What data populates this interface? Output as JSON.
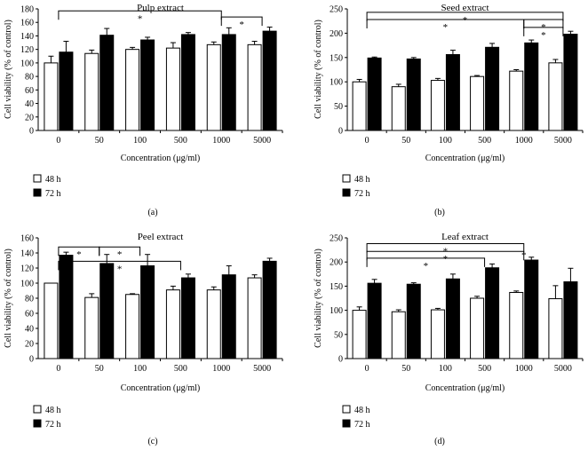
{
  "chart_data": [
    {
      "type": "bar",
      "title": "Pulp extract",
      "categories": [
        "0",
        "50",
        "100",
        "500",
        "1000",
        "5000"
      ],
      "series": [
        {
          "name": "48 h",
          "values": [
            100,
            114,
            120,
            122,
            127,
            127
          ],
          "errors": [
            10,
            5,
            3,
            8,
            4,
            5
          ]
        },
        {
          "name": "72 h",
          "values": [
            116,
            141,
            134,
            142,
            142,
            147
          ],
          "errors": [
            16,
            10,
            4,
            3,
            10,
            6
          ]
        }
      ],
      "ylabel": "Cell viability (% of control)",
      "xlabel": "Concentration (μg/ml)",
      "ylim": [
        0,
        180
      ],
      "yticks": [
        0,
        20,
        40,
        60,
        80,
        100,
        120,
        140,
        160,
        180
      ],
      "panel_label": "(a)",
      "annotations": [
        {
          "text": "*",
          "from": 0,
          "to": 4,
          "level": 177
        },
        {
          "text": "*",
          "from": 4,
          "to": 5,
          "level": 168
        }
      ]
    },
    {
      "type": "bar",
      "title": "Seed extract",
      "categories": [
        "0",
        "50",
        "100",
        "500",
        "1000",
        "5000"
      ],
      "series": [
        {
          "name": "48 h",
          "values": [
            100,
            90,
            103,
            111,
            122,
            139
          ],
          "errors": [
            5,
            5,
            4,
            2,
            3,
            7
          ]
        },
        {
          "name": "72 h",
          "values": [
            149,
            147,
            156,
            171,
            180,
            198
          ],
          "errors": [
            2,
            3,
            9,
            8,
            6,
            6
          ]
        }
      ],
      "ylabel": "Cell viability (% of control)",
      "xlabel": "Concentration (μg/ml)",
      "ylim": [
        0,
        250
      ],
      "yticks": [
        0,
        50,
        100,
        150,
        200,
        250
      ],
      "panel_label": "(b)",
      "annotations": [
        {
          "text": "*",
          "from": 0,
          "to": 5,
          "level": 243
        },
        {
          "text": "*",
          "from": 0,
          "to": 4,
          "level": 228
        },
        {
          "text": "*",
          "from": 4,
          "to": 5,
          "level": 228
        },
        {
          "text": "*",
          "from": 4,
          "to": 5,
          "level": 212
        }
      ]
    },
    {
      "type": "bar",
      "title": "Peel extract",
      "categories": [
        "0",
        "50",
        "100",
        "500",
        "1000",
        "5000"
      ],
      "series": [
        {
          "name": "48 h",
          "values": [
            100,
            81,
            85,
            91,
            91,
            107
          ],
          "errors": [
            0,
            5,
            1,
            5,
            4,
            4
          ]
        },
        {
          "name": "72 h",
          "values": [
            137,
            126,
            123,
            107,
            111,
            129
          ],
          "errors": [
            4,
            12,
            15,
            5,
            12,
            4
          ]
        }
      ],
      "ylabel": "Cell viability (% of control)",
      "xlabel": "Concentration (μg/ml)",
      "ylim": [
        0,
        160
      ],
      "yticks": [
        0,
        20,
        40,
        60,
        80,
        100,
        120,
        140,
        160
      ],
      "panel_label": "(c)",
      "annotations": [
        {
          "text": "*",
          "from": 0,
          "to": 1,
          "level": 148
        },
        {
          "text": "*",
          "from": 1,
          "to": 2,
          "level": 148
        },
        {
          "text": "*",
          "from": 0,
          "to": 3,
          "level": 129
        }
      ]
    },
    {
      "type": "bar",
      "title": "Leaf extract",
      "categories": [
        "0",
        "50",
        "100",
        "500",
        "1000",
        "5000"
      ],
      "series": [
        {
          "name": "48 h",
          "values": [
            100,
            97,
            101,
            125,
            137,
            124
          ],
          "errors": [
            7,
            4,
            3,
            4,
            3,
            27
          ]
        },
        {
          "name": "72 h",
          "values": [
            156,
            154,
            165,
            188,
            204,
            159
          ],
          "errors": [
            8,
            3,
            10,
            8,
            6,
            28
          ]
        }
      ],
      "ylabel": "Cell viability (% of control)",
      "xlabel": "Concentration (μg/ml)",
      "ylim": [
        0,
        250
      ],
      "yticks": [
        0,
        50,
        100,
        150,
        200,
        250
      ],
      "panel_label": "(d)",
      "annotations": [
        {
          "text": "*",
          "from": 0,
          "to": 4,
          "level": 238
        },
        {
          "text": "*",
          "from": 0,
          "to": 4,
          "level": 222
        },
        {
          "text": "*",
          "from": 0,
          "to": 3,
          "level": 208
        },
        {
          "text": "*",
          "from": 4,
          "to": 4,
          "level": 215
        }
      ]
    }
  ],
  "colors": {
    "s48": "#ffffff",
    "s72": "#000000",
    "axis": "#000000"
  }
}
